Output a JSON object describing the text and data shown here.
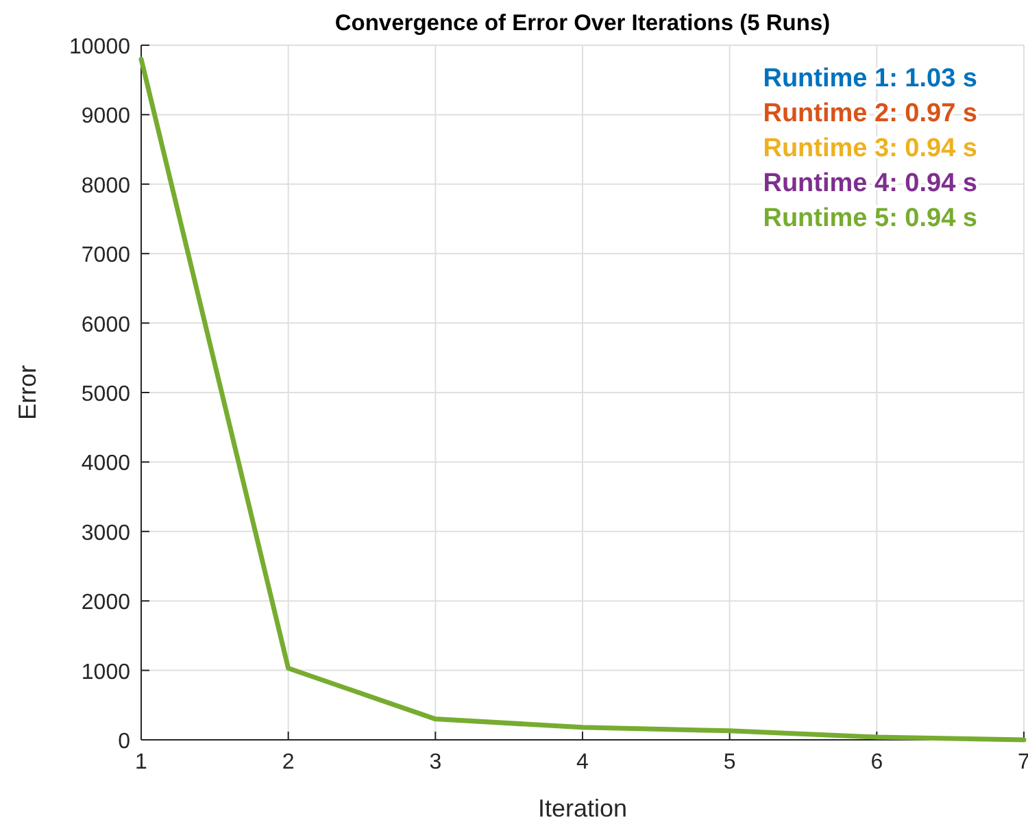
{
  "chart_data": {
    "type": "line",
    "title": "Convergence of Error Over Iterations (5 Runs)",
    "xlabel": "Iteration",
    "ylabel": "Error",
    "x": [
      1,
      2,
      3,
      4,
      5,
      6,
      7
    ],
    "series": [
      {
        "name": "Runtime 1: 1.03 s",
        "color": "#0072bd",
        "values": [
          null,
          null,
          null,
          null,
          null,
          null,
          null
        ]
      },
      {
        "name": "Runtime 2: 0.97 s",
        "color": "#d95319",
        "values": [
          null,
          null,
          null,
          null,
          null,
          null,
          null
        ]
      },
      {
        "name": "Runtime 3: 0.94 s",
        "color": "#edb120",
        "values": [
          null,
          null,
          null,
          null,
          null,
          null,
          null
        ]
      },
      {
        "name": "Runtime 4: 0.94 s",
        "color": "#7e2f8e",
        "values": [
          null,
          null,
          null,
          null,
          null,
          null,
          null
        ]
      },
      {
        "name": "Runtime 5: 0.94 s",
        "color": "#77ac30",
        "values": [
          9800,
          1030,
          300,
          180,
          130,
          40,
          0
        ]
      }
    ],
    "xlim": [
      1,
      7
    ],
    "xticks": [
      1,
      2,
      3,
      4,
      5,
      6,
      7
    ],
    "ylim": [
      0,
      10000
    ],
    "yticks": [
      0,
      1000,
      2000,
      3000,
      4000,
      5000,
      6000,
      7000,
      8000,
      9000,
      10000
    ],
    "grid": true,
    "legend": "top right",
    "marker": "none",
    "line_style": "solid"
  }
}
